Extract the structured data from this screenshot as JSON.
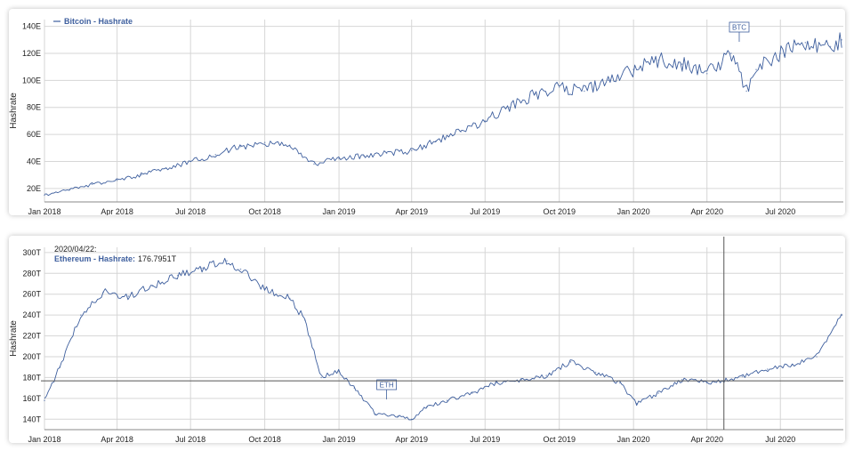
{
  "colors": {
    "series": "#3e5f9e",
    "grid": "#d6d6d6",
    "text": "#222222",
    "crosshair": "#555555"
  },
  "chart_data": [
    {
      "type": "line",
      "legend": "Bitcoin - Hashrate",
      "ylabel": "Hashrate",
      "ylim": [
        10,
        145
      ],
      "yticks": [
        20,
        40,
        60,
        80,
        100,
        120,
        140
      ],
      "ytick_labels": [
        "20E",
        "40E",
        "60E",
        "80E",
        "100E",
        "120E",
        "140E"
      ],
      "xlim": [
        "2018-01-01",
        "2020-09-17"
      ],
      "xticks": [
        "2018-01-01",
        "2018-04-01",
        "2018-07-01",
        "2018-10-01",
        "2019-01-01",
        "2019-04-01",
        "2019-07-01",
        "2019-10-01",
        "2020-01-01",
        "2020-04-01",
        "2020-07-01"
      ],
      "xtick_labels": [
        "Jan 2018",
        "Apr 2018",
        "Jul 2018",
        "Oct 2018",
        "Jan 2019",
        "Apr 2019",
        "Jul 2019",
        "Oct 2019",
        "Jan 2020",
        "Apr 2020",
        "Jul 2020"
      ],
      "flag": {
        "label": "BTC",
        "date": "2020-05-11"
      },
      "series": [
        {
          "x": [
            "2018-01-01",
            "2018-02-01",
            "2018-03-01",
            "2018-04-01",
            "2018-05-01",
            "2018-06-01",
            "2018-07-01",
            "2018-08-01",
            "2018-09-01",
            "2018-10-01",
            "2018-11-01",
            "2018-12-01",
            "2019-01-01",
            "2019-02-01",
            "2019-03-01",
            "2019-04-01",
            "2019-05-01",
            "2019-06-01",
            "2019-07-01",
            "2019-08-01",
            "2019-09-01",
            "2019-10-01",
            "2019-11-01",
            "2019-12-01",
            "2020-01-01",
            "2020-02-01",
            "2020-03-01",
            "2020-04-01",
            "2020-05-01",
            "2020-05-20",
            "2020-06-01",
            "2020-07-01",
            "2020-08-01",
            "2020-09-01",
            "2020-09-15"
          ],
          "y": [
            15,
            19,
            23,
            26,
            30,
            35,
            40,
            45,
            51,
            54,
            52,
            38,
            42,
            44,
            46,
            48,
            55,
            62,
            70,
            80,
            90,
            95,
            92,
            100,
            108,
            115,
            112,
            105,
            120,
            92,
            108,
            120,
            128,
            125,
            130
          ]
        }
      ]
    },
    {
      "type": "line",
      "legend": "Ethereum - Hashrate",
      "tooltip_date": "2020/04/22:",
      "tooltip_value": "176.7951T",
      "ylabel": "Hashrate",
      "ylim": [
        130,
        305
      ],
      "yticks": [
        140,
        160,
        180,
        200,
        220,
        240,
        260,
        280,
        300
      ],
      "ytick_labels": [
        "140T",
        "160T",
        "180T",
        "200T",
        "220T",
        "240T",
        "260T",
        "280T",
        "300T"
      ],
      "xlim": [
        "2018-01-01",
        "2020-09-17"
      ],
      "xticks": [
        "2018-01-01",
        "2018-04-01",
        "2018-07-01",
        "2018-10-01",
        "2019-01-01",
        "2019-04-01",
        "2019-07-01",
        "2019-10-01",
        "2020-01-01",
        "2020-04-01",
        "2020-07-01"
      ],
      "xtick_labels": [
        "Jan 2018",
        "Apr 2018",
        "Jul 2018",
        "Oct 2018",
        "Jan 2019",
        "Apr 2019",
        "Jul 2019",
        "Oct 2019",
        "Jan 2020",
        "Apr 2020",
        "Jul 2020"
      ],
      "flag": {
        "label": "ETH",
        "date": "2019-03-01"
      },
      "crosshair": {
        "date": "2020-04-22",
        "value": 176.7951
      },
      "series": [
        {
          "x": [
            "2018-01-01",
            "2018-01-20",
            "2018-02-15",
            "2018-03-15",
            "2018-04-15",
            "2018-05-15",
            "2018-06-15",
            "2018-07-15",
            "2018-08-15",
            "2018-09-01",
            "2018-10-01",
            "2018-11-01",
            "2018-11-20",
            "2018-12-10",
            "2019-01-01",
            "2019-01-20",
            "2019-02-15",
            "2019-03-15",
            "2019-04-01",
            "2019-04-20",
            "2019-05-15",
            "2019-06-15",
            "2019-07-15",
            "2019-08-15",
            "2019-09-15",
            "2019-10-15",
            "2019-11-15",
            "2019-12-15",
            "2020-01-05",
            "2020-02-01",
            "2020-03-01",
            "2020-04-01",
            "2020-04-22",
            "2020-05-15",
            "2020-06-15",
            "2020-07-15",
            "2020-08-15",
            "2020-09-15"
          ],
          "y": [
            158,
            190,
            240,
            262,
            258,
            268,
            278,
            285,
            292,
            284,
            265,
            256,
            235,
            180,
            186,
            170,
            145,
            143,
            140,
            152,
            158,
            165,
            175,
            178,
            182,
            195,
            185,
            175,
            155,
            165,
            178,
            175,
            176.8,
            181,
            188,
            192,
            200,
            240
          ]
        }
      ]
    }
  ]
}
